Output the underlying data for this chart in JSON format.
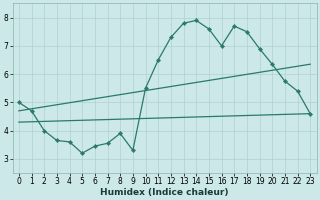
{
  "xlabel": "Humidex (Indice chaleur)",
  "xlim": [
    -0.5,
    23.5
  ],
  "ylim": [
    2.5,
    8.5
  ],
  "yticks": [
    3,
    4,
    5,
    6,
    7,
    8
  ],
  "xticks": [
    0,
    1,
    2,
    3,
    4,
    5,
    6,
    7,
    8,
    9,
    10,
    11,
    12,
    13,
    14,
    15,
    16,
    17,
    18,
    19,
    20,
    21,
    22,
    23
  ],
  "bg_color": "#cce8e8",
  "grid_color": "#b0d0d0",
  "line_color": "#2a7a6a",
  "series": {
    "top": {
      "x": [
        0,
        1,
        2,
        3,
        4,
        5,
        6,
        7,
        8,
        9,
        10,
        11,
        12,
        13,
        14,
        15,
        16,
        17,
        18,
        19,
        20,
        21,
        22,
        23
      ],
      "y": [
        5.0,
        4.7,
        4.0,
        3.65,
        3.6,
        3.2,
        3.45,
        3.55,
        3.9,
        3.3,
        5.5,
        6.5,
        7.3,
        7.8,
        7.9,
        7.6,
        7.0,
        7.7,
        7.5,
        6.9,
        6.35,
        5.75,
        5.4,
        4.6
      ],
      "markers": true
    },
    "mid": {
      "x": [
        0,
        23
      ],
      "y": [
        4.7,
        6.35
      ],
      "markers": false
    },
    "bottom": {
      "x": [
        0,
        23
      ],
      "y": [
        4.3,
        4.6
      ],
      "markers": false
    }
  }
}
